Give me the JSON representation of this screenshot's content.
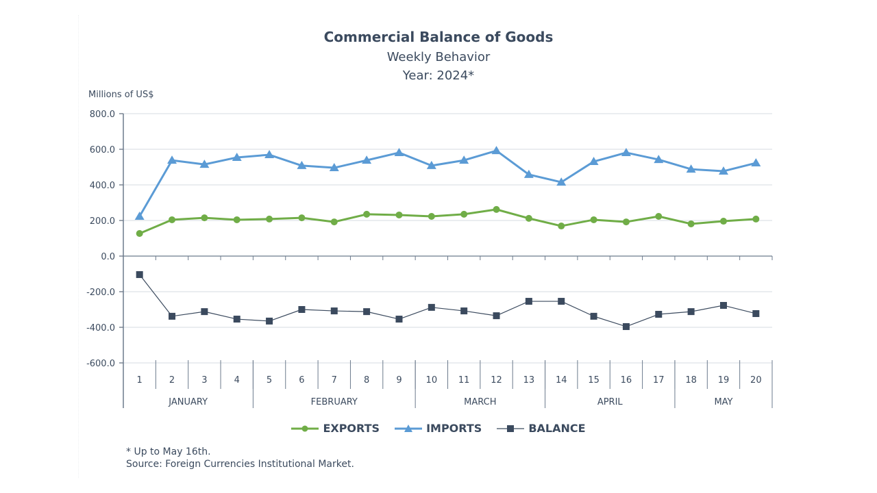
{
  "chart_data": {
    "type": "line",
    "title": "Commercial Balance of Goods",
    "subtitle": "Weekly Behavior",
    "year_label": "Year: 2024*",
    "ylabel": "Millions of US$",
    "xlabel": "",
    "ylim": [
      -600,
      800
    ],
    "yticks": [
      800,
      600,
      400,
      200,
      0,
      -200,
      -400,
      -600
    ],
    "ytick_labels": [
      "800.0",
      "600.0",
      "400.0",
      "200.0",
      "0.0",
      "-200.0",
      "-400.0",
      "-600.0"
    ],
    "grid": true,
    "categories": [
      "1",
      "2",
      "3",
      "4",
      "5",
      "6",
      "7",
      "8",
      "9",
      "10",
      "11",
      "12",
      "13",
      "14",
      "15",
      "16",
      "17",
      "18",
      "19",
      "20"
    ],
    "month_groups": [
      {
        "label": "JANUARY",
        "start": 1,
        "end": 4
      },
      {
        "label": "FEBRUARY",
        "start": 5,
        "end": 9
      },
      {
        "label": "MARCH",
        "start": 10,
        "end": 13
      },
      {
        "label": "APRIL",
        "start": 14,
        "end": 17
      },
      {
        "label": "MAY",
        "start": 18,
        "end": 20
      }
    ],
    "series": [
      {
        "name": "EXPORTS",
        "color": "#70ad47",
        "marker": "circle",
        "values": [
          127,
          204,
          215,
          204,
          208,
          215,
          192,
          235,
          231,
          223,
          235,
          262,
          212,
          169,
          204,
          192,
          223,
          181,
          196,
          208
        ]
      },
      {
        "name": "IMPORTS",
        "color": "#5b9bd5",
        "marker": "triangle",
        "values": [
          223,
          538,
          515,
          554,
          569,
          508,
          496,
          538,
          581,
          508,
          538,
          592,
          458,
          415,
          531,
          581,
          542,
          488,
          477,
          523
        ]
      },
      {
        "name": "BALANCE",
        "color": "#3b4a5e",
        "marker": "square",
        "values": [
          -104,
          -338,
          -312,
          -354,
          -365,
          -300,
          -308,
          -312,
          -354,
          -288,
          -308,
          -335,
          -254,
          -254,
          -338,
          -396,
          -327,
          -312,
          -277,
          -323
        ]
      }
    ],
    "legend_position": "bottom-center"
  },
  "notes": {
    "footnote": "* Up to May 16th.",
    "source": "Source: Foreign Currencies Institutional Market."
  }
}
